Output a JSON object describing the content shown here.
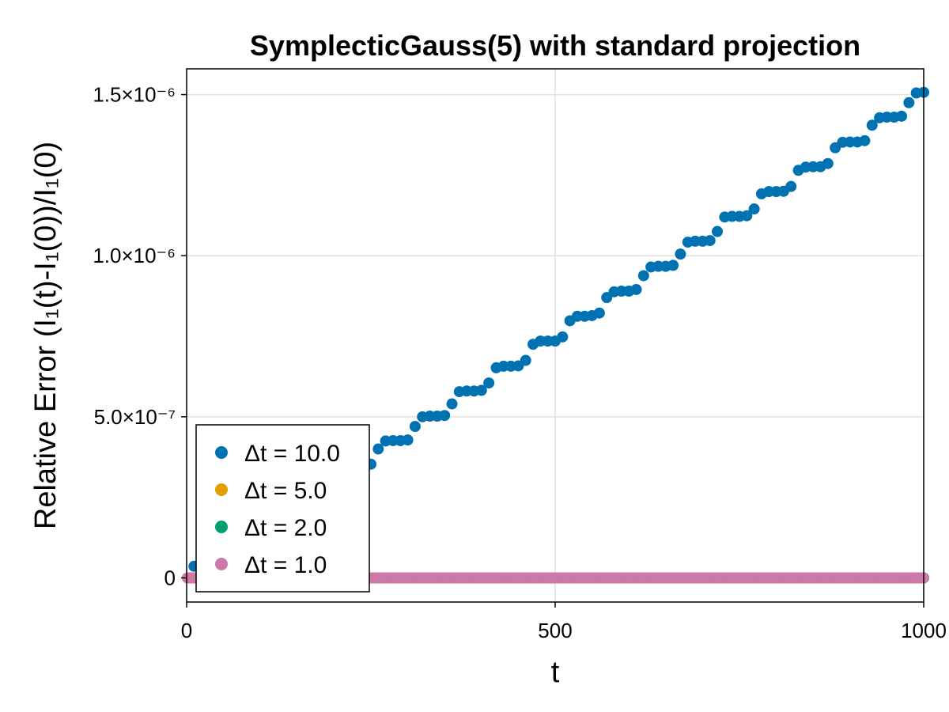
{
  "chart_data": {
    "type": "scatter",
    "title": "SymplecticGauss(5) with standard projection",
    "xlabel": "t",
    "ylabel": "Relative Error (I₁(t)-I₁(0))/I₁(0)",
    "xlim": [
      0,
      1000
    ],
    "ylim": [
      -7.5e-08,
      1.58e-06
    ],
    "x_ticks": [
      {
        "value": 0,
        "label": "0"
      },
      {
        "value": 500,
        "label": "500"
      },
      {
        "value": 1000,
        "label": "1000"
      }
    ],
    "y_ticks": [
      {
        "value": 0,
        "label": "0"
      },
      {
        "value": 5e-07,
        "label": "5.0×10⁻⁷"
      },
      {
        "value": 1e-06,
        "label": "1.0×10⁻⁶"
      },
      {
        "value": 1.5e-06,
        "label": "1.5×10⁻⁶"
      }
    ],
    "grid": true,
    "legend_position": "bottom-left",
    "series": [
      {
        "name": "Δt = 10.0",
        "color": "#0072b2",
        "dt": 10,
        "x": [
          10,
          20,
          30,
          40,
          50,
          60,
          70,
          80,
          90,
          100,
          110,
          120,
          130,
          140,
          150,
          160,
          170,
          180,
          190,
          200,
          210,
          220,
          230,
          240,
          250,
          260,
          270,
          280,
          290,
          300,
          310,
          320,
          330,
          340,
          350,
          360,
          370,
          380,
          390,
          400,
          410,
          420,
          430,
          440,
          450,
          460,
          470,
          480,
          490,
          500,
          510,
          520,
          530,
          540,
          550,
          560,
          570,
          580,
          590,
          600,
          610,
          620,
          630,
          640,
          650,
          660,
          670,
          680,
          690,
          700,
          710,
          720,
          730,
          740,
          750,
          760,
          770,
          780,
          790,
          800,
          810,
          820,
          830,
          840,
          850,
          860,
          870,
          880,
          890,
          900,
          910,
          920,
          930,
          940,
          950,
          960,
          970,
          980,
          990,
          1000
        ],
        "y": [
          3.6e-08,
          4.2e-08,
          4.2e-08,
          4.2e-08,
          4.3e-08,
          8.4e-08,
          9e-08,
          9e-08,
          9.1e-08,
          9.5e-08,
          1.25e-07,
          1.65e-07,
          1.68e-07,
          1.7e-07,
          1.75e-07,
          2.05e-07,
          2.45e-07,
          2.5e-07,
          2.52e-07,
          2.55e-07,
          2.85e-07,
          3.25e-07,
          3.3e-07,
          3.32e-07,
          3.53e-07,
          4e-07,
          4.25e-07,
          4.26e-07,
          4.26e-07,
          4.28e-07,
          4.7e-07,
          5e-07,
          5.02e-07,
          5.02e-07,
          5.04e-07,
          5.4e-07,
          5.78e-07,
          5.8e-07,
          5.8e-07,
          5.82e-07,
          6.05e-07,
          6.52e-07,
          6.57e-07,
          6.57e-07,
          6.58e-07,
          6.75e-07,
          7.25e-07,
          7.35e-07,
          7.35e-07,
          7.35e-07,
          7.48e-07,
          7.98e-07,
          8.12e-07,
          8.12e-07,
          8.14e-07,
          8.22e-07,
          8.7e-07,
          8.88e-07,
          8.9e-07,
          8.9e-07,
          8.95e-07,
          9.38e-07,
          9.65e-07,
          9.67e-07,
          9.67e-07,
          9.7e-07,
          1.005e-06,
          1.042e-06,
          1.045e-06,
          1.045e-06,
          1.047e-06,
          1.075e-06,
          1.12e-06,
          1.122e-06,
          1.122e-06,
          1.124e-06,
          1.145e-06,
          1.192e-06,
          1.199e-06,
          1.199e-06,
          1.2e-06,
          1.215e-06,
          1.265e-06,
          1.275e-06,
          1.276e-06,
          1.276e-06,
          1.286e-06,
          1.335e-06,
          1.352e-06,
          1.353e-06,
          1.353e-06,
          1.357e-06,
          1.405e-06,
          1.428e-06,
          1.43e-06,
          1.43e-06,
          1.433e-06,
          1.475e-06,
          1.505e-06,
          1.507e-06
        ]
      },
      {
        "name": "Δt = 5.0",
        "color": "#e69f00",
        "dt": 5,
        "x_range": [
          5,
          1000
        ],
        "y_constant": 0
      },
      {
        "name": "Δt = 2.0",
        "color": "#009e73",
        "dt": 2,
        "x_range": [
          2,
          1000
        ],
        "y_constant": 0
      },
      {
        "name": "Δt = 1.0",
        "color": "#cc79a7",
        "dt": 1,
        "x_range": [
          1,
          1000
        ],
        "y_constant": 0
      }
    ]
  }
}
